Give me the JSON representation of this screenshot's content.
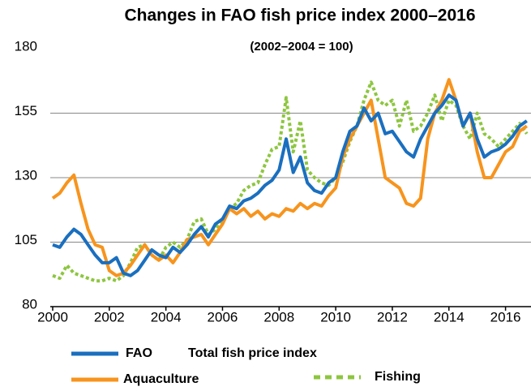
{
  "chart_data": {
    "type": "line",
    "title": "Changes in FAO  fish price index 2000–2016",
    "subtitle": "(2002–2004 = 100)",
    "legend_note": "Total fish price index",
    "x": [
      2000,
      2000.25,
      2000.5,
      2000.75,
      2001,
      2001.25,
      2001.5,
      2001.75,
      2002,
      2002.25,
      2002.5,
      2002.75,
      2003,
      2003.25,
      2003.5,
      2003.75,
      2004,
      2004.25,
      2004.5,
      2004.75,
      2005,
      2005.25,
      2005.5,
      2005.75,
      2006,
      2006.25,
      2006.5,
      2006.75,
      2007,
      2007.25,
      2007.5,
      2007.75,
      2008,
      2008.25,
      2008.5,
      2008.75,
      2009,
      2009.25,
      2009.5,
      2009.75,
      2010,
      2010.25,
      2010.5,
      2010.75,
      2011,
      2011.25,
      2011.5,
      2011.75,
      2012,
      2012.25,
      2012.5,
      2012.75,
      2013,
      2013.25,
      2013.5,
      2013.75,
      2014,
      2014.25,
      2014.5,
      2014.75,
      2015,
      2015.25,
      2015.5,
      2015.75,
      2016,
      2016.25,
      2016.5,
      2016.75
    ],
    "series": [
      {
        "name": "FAO",
        "color": "#1a6fbf",
        "style": "solid",
        "values": [
          104,
          103,
          107,
          110,
          108,
          104,
          100,
          97,
          97,
          99,
          93,
          92,
          94,
          98,
          102,
          100,
          99,
          103,
          101,
          104,
          108,
          111,
          107,
          112,
          114,
          119,
          118,
          121,
          122,
          124,
          127,
          129,
          133,
          145,
          132,
          138,
          128,
          125,
          124,
          128,
          130,
          140,
          148,
          150,
          157,
          152,
          155,
          147,
          148,
          144,
          140,
          138,
          145,
          150,
          155,
          158,
          162,
          160,
          150,
          155,
          145,
          138,
          140,
          141,
          143,
          146,
          150,
          152
        ]
      },
      {
        "name": "Aquaculture",
        "color": "#f7941d",
        "style": "solid",
        "values": [
          122,
          124,
          128,
          131,
          120,
          110,
          104,
          103,
          94,
          92,
          93,
          96,
          100,
          104,
          100,
          98,
          100,
          97,
          101,
          106,
          107,
          108,
          104,
          108,
          112,
          118,
          116,
          118,
          115,
          117,
          114,
          116,
          115,
          118,
          117,
          120,
          118,
          120,
          119,
          123,
          126,
          138,
          145,
          150,
          155,
          160,
          145,
          130,
          128,
          126,
          120,
          119,
          122,
          145,
          155,
          160,
          168,
          160,
          150,
          155,
          140,
          130,
          130,
          135,
          140,
          142,
          148,
          150
        ]
      },
      {
        "name": "Fishing",
        "color": "#8dc63f",
        "style": "dotted",
        "values": [
          92,
          91,
          96,
          93,
          92,
          91,
          90,
          90,
          91,
          90,
          92,
          97,
          103,
          104,
          100,
          98,
          103,
          105,
          103,
          106,
          113,
          114,
          108,
          110,
          114,
          118,
          120,
          125,
          127,
          128,
          135,
          141,
          142,
          161,
          140,
          152,
          133,
          130,
          128,
          127,
          130,
          136,
          144,
          150,
          160,
          167,
          160,
          158,
          160,
          150,
          160,
          148,
          150,
          155,
          162,
          152,
          160,
          158,
          150,
          145,
          155,
          147,
          145,
          142,
          145,
          148,
          151,
          147
        ]
      }
    ],
    "xlim": [
      2000,
      2016.9
    ],
    "xticks": [
      2000,
      2002,
      2004,
      2006,
      2008,
      2010,
      2012,
      2014,
      2016
    ],
    "ylim": [
      80,
      180
    ],
    "yticks": [
      80,
      105,
      130,
      155,
      180
    ],
    "grid": true
  }
}
